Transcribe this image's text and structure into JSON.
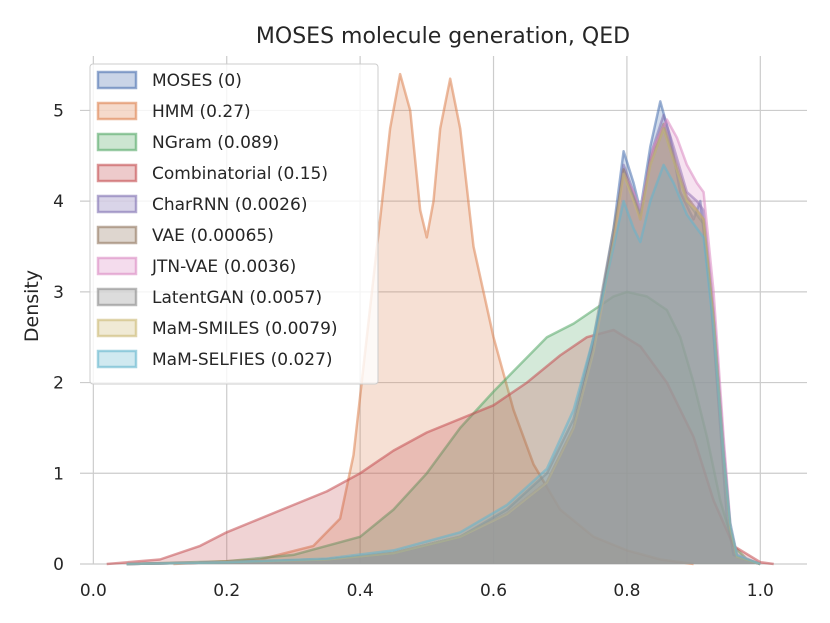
{
  "chart_data": {
    "type": "area",
    "title": "MOSES molecule generation, QED",
    "xlabel": "",
    "ylabel": "Density",
    "xlim": [
      -0.02,
      1.07
    ],
    "ylim": [
      0,
      5.6
    ],
    "x_ticks": [
      0.0,
      0.2,
      0.4,
      0.6,
      0.8,
      1.0
    ],
    "x_tick_labels": [
      "0.0",
      "0.2",
      "0.4",
      "0.6",
      "0.8",
      "1.0"
    ],
    "y_ticks": [
      0,
      1,
      2,
      3,
      4,
      5
    ],
    "y_tick_labels": [
      "0",
      "1",
      "2",
      "3",
      "4",
      "5"
    ],
    "grid": true,
    "legend_position": "top-left",
    "series": [
      {
        "name": "MOSES (0)",
        "color": "#4c72b0",
        "points": [
          [
            0.05,
            0
          ],
          [
            0.2,
            0.02
          ],
          [
            0.35,
            0.05
          ],
          [
            0.45,
            0.12
          ],
          [
            0.55,
            0.3
          ],
          [
            0.62,
            0.55
          ],
          [
            0.68,
            0.9
          ],
          [
            0.72,
            1.5
          ],
          [
            0.75,
            2.4
          ],
          [
            0.78,
            3.7
          ],
          [
            0.795,
            4.55
          ],
          [
            0.81,
            4.2
          ],
          [
            0.82,
            3.9
          ],
          [
            0.835,
            4.6
          ],
          [
            0.85,
            5.1
          ],
          [
            0.865,
            4.7
          ],
          [
            0.88,
            4.1
          ],
          [
            0.9,
            3.8
          ],
          [
            0.91,
            4.0
          ],
          [
            0.925,
            3.0
          ],
          [
            0.94,
            1.5
          ],
          [
            0.95,
            0.5
          ],
          [
            0.96,
            0.1
          ],
          [
            1.0,
            0
          ]
        ]
      },
      {
        "name": "HMM (0.27)",
        "color": "#dd8452",
        "points": [
          [
            0.12,
            0
          ],
          [
            0.25,
            0.05
          ],
          [
            0.33,
            0.2
          ],
          [
            0.37,
            0.5
          ],
          [
            0.39,
            1.2
          ],
          [
            0.41,
            2.5
          ],
          [
            0.43,
            3.8
          ],
          [
            0.445,
            4.8
          ],
          [
            0.46,
            5.4
          ],
          [
            0.475,
            5.0
          ],
          [
            0.49,
            3.9
          ],
          [
            0.5,
            3.6
          ],
          [
            0.51,
            4.0
          ],
          [
            0.52,
            4.8
          ],
          [
            0.535,
            5.35
          ],
          [
            0.55,
            4.8
          ],
          [
            0.57,
            3.5
          ],
          [
            0.6,
            2.5
          ],
          [
            0.63,
            1.7
          ],
          [
            0.66,
            1.1
          ],
          [
            0.7,
            0.6
          ],
          [
            0.75,
            0.3
          ],
          [
            0.8,
            0.15
          ],
          [
            0.85,
            0.05
          ],
          [
            0.9,
            0
          ]
        ]
      },
      {
        "name": "NGram (0.089)",
        "color": "#55a868",
        "points": [
          [
            0.05,
            0
          ],
          [
            0.2,
            0.03
          ],
          [
            0.3,
            0.1
          ],
          [
            0.4,
            0.3
          ],
          [
            0.45,
            0.6
          ],
          [
            0.5,
            1.0
          ],
          [
            0.55,
            1.5
          ],
          [
            0.6,
            1.9
          ],
          [
            0.64,
            2.2
          ],
          [
            0.68,
            2.5
          ],
          [
            0.72,
            2.65
          ],
          [
            0.75,
            2.8
          ],
          [
            0.78,
            2.95
          ],
          [
            0.8,
            3.0
          ],
          [
            0.83,
            2.95
          ],
          [
            0.86,
            2.8
          ],
          [
            0.88,
            2.5
          ],
          [
            0.9,
            2.0
          ],
          [
            0.92,
            1.4
          ],
          [
            0.94,
            0.7
          ],
          [
            0.96,
            0.2
          ],
          [
            0.98,
            0.05
          ],
          [
            1.0,
            0
          ]
        ]
      },
      {
        "name": "Combinatorial (0.15)",
        "color": "#c44e52",
        "points": [
          [
            0.02,
            0
          ],
          [
            0.1,
            0.05
          ],
          [
            0.16,
            0.2
          ],
          [
            0.2,
            0.35
          ],
          [
            0.25,
            0.5
          ],
          [
            0.3,
            0.65
          ],
          [
            0.35,
            0.8
          ],
          [
            0.4,
            1.0
          ],
          [
            0.45,
            1.25
          ],
          [
            0.5,
            1.45
          ],
          [
            0.55,
            1.6
          ],
          [
            0.6,
            1.75
          ],
          [
            0.65,
            2.0
          ],
          [
            0.7,
            2.3
          ],
          [
            0.74,
            2.5
          ],
          [
            0.78,
            2.58
          ],
          [
            0.82,
            2.4
          ],
          [
            0.86,
            2.0
          ],
          [
            0.9,
            1.4
          ],
          [
            0.93,
            0.7
          ],
          [
            0.96,
            0.2
          ],
          [
            1.0,
            0.02
          ],
          [
            1.02,
            0
          ]
        ]
      },
      {
        "name": "CharRNN (0.0026)",
        "color": "#8172b3",
        "points": [
          [
            0.05,
            0
          ],
          [
            0.2,
            0.02
          ],
          [
            0.35,
            0.05
          ],
          [
            0.45,
            0.12
          ],
          [
            0.55,
            0.3
          ],
          [
            0.62,
            0.55
          ],
          [
            0.68,
            0.9
          ],
          [
            0.72,
            1.5
          ],
          [
            0.75,
            2.4
          ],
          [
            0.78,
            3.6
          ],
          [
            0.795,
            4.4
          ],
          [
            0.81,
            4.1
          ],
          [
            0.82,
            3.8
          ],
          [
            0.835,
            4.5
          ],
          [
            0.855,
            4.95
          ],
          [
            0.87,
            4.6
          ],
          [
            0.89,
            4.1
          ],
          [
            0.905,
            4.0
          ],
          [
            0.915,
            3.9
          ],
          [
            0.93,
            2.8
          ],
          [
            0.945,
            1.3
          ],
          [
            0.955,
            0.4
          ],
          [
            0.965,
            0.08
          ],
          [
            1.0,
            0
          ]
        ]
      },
      {
        "name": "VAE (0.00065)",
        "color": "#937860",
        "points": [
          [
            0.05,
            0
          ],
          [
            0.2,
            0.02
          ],
          [
            0.35,
            0.05
          ],
          [
            0.45,
            0.12
          ],
          [
            0.55,
            0.3
          ],
          [
            0.62,
            0.55
          ],
          [
            0.68,
            0.9
          ],
          [
            0.72,
            1.5
          ],
          [
            0.75,
            2.4
          ],
          [
            0.78,
            3.6
          ],
          [
            0.795,
            4.35
          ],
          [
            0.81,
            4.05
          ],
          [
            0.82,
            3.8
          ],
          [
            0.835,
            4.45
          ],
          [
            0.855,
            4.85
          ],
          [
            0.87,
            4.5
          ],
          [
            0.89,
            4.05
          ],
          [
            0.905,
            3.9
          ],
          [
            0.915,
            3.8
          ],
          [
            0.93,
            2.7
          ],
          [
            0.945,
            1.2
          ],
          [
            0.955,
            0.4
          ],
          [
            0.965,
            0.08
          ],
          [
            1.0,
            0
          ]
        ]
      },
      {
        "name": "JTN-VAE (0.0036)",
        "color": "#da8bc3",
        "points": [
          [
            0.05,
            0
          ],
          [
            0.2,
            0.02
          ],
          [
            0.35,
            0.05
          ],
          [
            0.45,
            0.12
          ],
          [
            0.55,
            0.3
          ],
          [
            0.62,
            0.55
          ],
          [
            0.68,
            0.9
          ],
          [
            0.72,
            1.5
          ],
          [
            0.75,
            2.35
          ],
          [
            0.78,
            3.5
          ],
          [
            0.795,
            4.3
          ],
          [
            0.81,
            4.1
          ],
          [
            0.82,
            3.9
          ],
          [
            0.84,
            4.6
          ],
          [
            0.86,
            4.9
          ],
          [
            0.875,
            4.7
          ],
          [
            0.89,
            4.4
          ],
          [
            0.905,
            4.2
          ],
          [
            0.915,
            4.1
          ],
          [
            0.93,
            3.0
          ],
          [
            0.945,
            1.4
          ],
          [
            0.955,
            0.45
          ],
          [
            0.965,
            0.1
          ],
          [
            1.0,
            0
          ]
        ]
      },
      {
        "name": "LatentGAN (0.0057)",
        "color": "#8c8c8c",
        "points": [
          [
            0.05,
            0
          ],
          [
            0.2,
            0.02
          ],
          [
            0.35,
            0.05
          ],
          [
            0.45,
            0.12
          ],
          [
            0.55,
            0.3
          ],
          [
            0.62,
            0.6
          ],
          [
            0.68,
            1.0
          ],
          [
            0.72,
            1.6
          ],
          [
            0.75,
            2.5
          ],
          [
            0.78,
            3.7
          ],
          [
            0.795,
            4.3
          ],
          [
            0.81,
            4.05
          ],
          [
            0.82,
            3.85
          ],
          [
            0.835,
            4.4
          ],
          [
            0.855,
            4.8
          ],
          [
            0.87,
            4.45
          ],
          [
            0.89,
            4.0
          ],
          [
            0.905,
            3.85
          ],
          [
            0.915,
            3.75
          ],
          [
            0.93,
            2.7
          ],
          [
            0.945,
            1.2
          ],
          [
            0.955,
            0.4
          ],
          [
            0.965,
            0.08
          ],
          [
            1.0,
            0
          ]
        ]
      },
      {
        "name": "MaM-SMILES (0.0079)",
        "color": "#ccb974",
        "points": [
          [
            0.05,
            0
          ],
          [
            0.2,
            0.02
          ],
          [
            0.35,
            0.05
          ],
          [
            0.45,
            0.12
          ],
          [
            0.55,
            0.3
          ],
          [
            0.62,
            0.55
          ],
          [
            0.68,
            0.9
          ],
          [
            0.72,
            1.5
          ],
          [
            0.75,
            2.35
          ],
          [
            0.78,
            3.55
          ],
          [
            0.795,
            4.3
          ],
          [
            0.81,
            4.0
          ],
          [
            0.82,
            3.8
          ],
          [
            0.835,
            4.4
          ],
          [
            0.855,
            4.8
          ],
          [
            0.87,
            4.45
          ],
          [
            0.89,
            4.0
          ],
          [
            0.905,
            3.9
          ],
          [
            0.915,
            3.8
          ],
          [
            0.93,
            2.7
          ],
          [
            0.945,
            1.2
          ],
          [
            0.955,
            0.4
          ],
          [
            0.965,
            0.08
          ],
          [
            1.0,
            0
          ]
        ]
      },
      {
        "name": "MaM-SELFIES (0.027)",
        "color": "#64b5cd",
        "points": [
          [
            0.05,
            0
          ],
          [
            0.2,
            0.02
          ],
          [
            0.35,
            0.06
          ],
          [
            0.45,
            0.15
          ],
          [
            0.55,
            0.35
          ],
          [
            0.62,
            0.65
          ],
          [
            0.68,
            1.05
          ],
          [
            0.72,
            1.7
          ],
          [
            0.75,
            2.5
          ],
          [
            0.78,
            3.5
          ],
          [
            0.795,
            4.0
          ],
          [
            0.81,
            3.7
          ],
          [
            0.82,
            3.55
          ],
          [
            0.835,
            4.0
          ],
          [
            0.855,
            4.4
          ],
          [
            0.87,
            4.2
          ],
          [
            0.89,
            3.85
          ],
          [
            0.905,
            3.7
          ],
          [
            0.915,
            3.6
          ],
          [
            0.93,
            2.6
          ],
          [
            0.945,
            1.2
          ],
          [
            0.955,
            0.45
          ],
          [
            0.965,
            0.1
          ],
          [
            1.0,
            0
          ]
        ]
      }
    ]
  }
}
